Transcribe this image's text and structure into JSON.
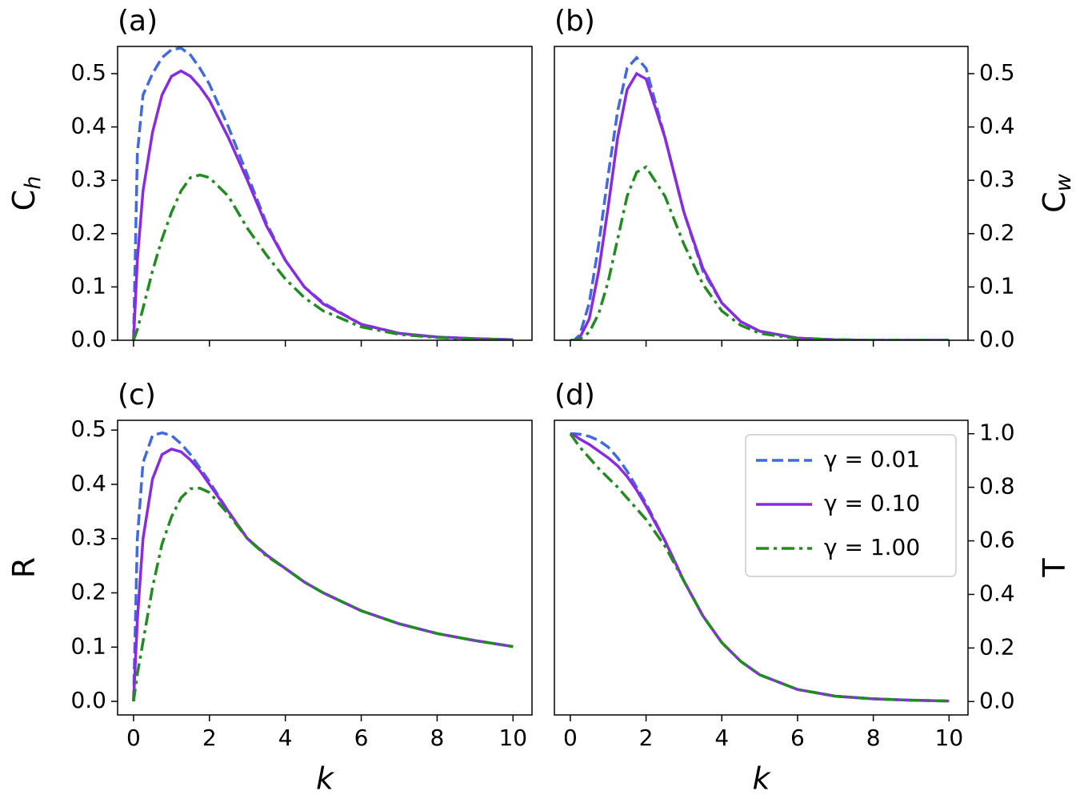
{
  "chart_data": [
    {
      "type": "line",
      "title": "(a)",
      "ylabel": {
        "base": "C",
        "sub": "h"
      },
      "yaxis_side": "left",
      "show_xticklabels": false,
      "x": [
        0,
        0.1,
        0.25,
        0.5,
        0.75,
        1,
        1.25,
        1.5,
        1.75,
        2,
        2.5,
        3,
        3.5,
        4,
        4.5,
        5,
        6,
        7,
        8,
        9,
        10
      ],
      "xlim": [
        -0.42,
        10.5
      ],
      "xticks": [
        0,
        2,
        4,
        6,
        8,
        10
      ],
      "ylim": [
        0,
        0.551
      ],
      "yticks": [
        {
          "value": 0,
          "label": "0.0"
        },
        0.1,
        0.2,
        0.3,
        0.4,
        0.5
      ],
      "series": [
        {
          "name": "γ = 0.01",
          "color": "#4169e1",
          "linestyle": "dashed",
          "values": [
            0,
            0.35,
            0.46,
            0.5,
            0.53,
            0.545,
            0.548,
            0.535,
            0.51,
            0.48,
            0.4,
            0.31,
            0.22,
            0.15,
            0.1,
            0.07,
            0.03,
            0.013,
            0.006,
            0.003,
            0.001
          ]
        },
        {
          "name": "γ = 0.10",
          "color": "#8a2be2",
          "linestyle": "solid",
          "values": [
            0,
            0.15,
            0.28,
            0.39,
            0.46,
            0.495,
            0.505,
            0.495,
            0.475,
            0.45,
            0.38,
            0.3,
            0.215,
            0.15,
            0.1,
            0.068,
            0.03,
            0.013,
            0.006,
            0.003,
            0.001
          ]
        },
        {
          "name": "γ = 1.00",
          "color": "#228b22",
          "linestyle": "dashdot",
          "values": [
            0,
            0.02,
            0.06,
            0.13,
            0.19,
            0.24,
            0.28,
            0.305,
            0.31,
            0.305,
            0.27,
            0.21,
            0.16,
            0.115,
            0.08,
            0.055,
            0.025,
            0.011,
            0.005,
            0.002,
            0.001
          ]
        }
      ]
    },
    {
      "type": "line",
      "title": "(b)",
      "ylabel": {
        "base": "C",
        "sub": "w"
      },
      "yaxis_side": "right",
      "show_xticklabels": false,
      "x": [
        0,
        0.1,
        0.25,
        0.5,
        0.75,
        1,
        1.25,
        1.5,
        1.75,
        2,
        2.5,
        3,
        3.5,
        4,
        4.5,
        5,
        6,
        7,
        8,
        9,
        10
      ],
      "xlim": [
        -0.42,
        10.5
      ],
      "xticks": [
        0,
        2,
        4,
        6,
        8,
        10
      ],
      "ylim": [
        0,
        0.551
      ],
      "yticks": [
        {
          "value": 0,
          "label": "0.0"
        },
        0.1,
        0.2,
        0.3,
        0.4,
        0.5
      ],
      "series": [
        {
          "name": "γ = 0.01",
          "color": "#4169e1",
          "linestyle": "dashed",
          "values": [
            0,
            0,
            0.01,
            0.07,
            0.18,
            0.31,
            0.43,
            0.51,
            0.53,
            0.51,
            0.38,
            0.24,
            0.13,
            0.07,
            0.035,
            0.017,
            0.004,
            0.001,
            0,
            0,
            0
          ]
        },
        {
          "name": "γ = 0.10",
          "color": "#8a2be2",
          "linestyle": "solid",
          "values": [
            0,
            0,
            0.005,
            0.04,
            0.13,
            0.25,
            0.38,
            0.47,
            0.5,
            0.49,
            0.38,
            0.24,
            0.135,
            0.07,
            0.035,
            0.017,
            0.004,
            0.001,
            0,
            0,
            0
          ]
        },
        {
          "name": "γ = 1.00",
          "color": "#228b22",
          "linestyle": "dashdot",
          "values": [
            0,
            0,
            0.002,
            0.015,
            0.05,
            0.11,
            0.19,
            0.27,
            0.315,
            0.325,
            0.27,
            0.18,
            0.105,
            0.055,
            0.028,
            0.013,
            0.003,
            0.001,
            0,
            0,
            0
          ]
        }
      ]
    },
    {
      "type": "line",
      "title": "(c)",
      "ylabel": {
        "base": "R"
      },
      "xlabel": "k",
      "yaxis_side": "left",
      "show_xticklabels": true,
      "x": [
        0,
        0.1,
        0.25,
        0.5,
        0.75,
        1,
        1.25,
        1.5,
        1.75,
        2,
        2.5,
        3,
        3.5,
        4,
        4.5,
        5,
        6,
        7,
        8,
        9,
        10
      ],
      "xlim": [
        -0.42,
        10.5
      ],
      "xticks": [
        0,
        2,
        4,
        6,
        8,
        10
      ],
      "ylim": [
        -0.025,
        0.518
      ],
      "yticks": [
        {
          "value": 0,
          "label": "0.0"
        },
        0.1,
        0.2,
        0.3,
        0.4,
        0.5
      ],
      "series": [
        {
          "name": "γ = 0.01",
          "color": "#4169e1",
          "linestyle": "dashed",
          "values": [
            0,
            0.3,
            0.44,
            0.49,
            0.495,
            0.49,
            0.475,
            0.455,
            0.43,
            0.405,
            0.35,
            0.3,
            0.27,
            0.245,
            0.22,
            0.2,
            0.167,
            0.143,
            0.125,
            0.112,
            0.101
          ]
        },
        {
          "name": "γ = 0.10",
          "color": "#8a2be2",
          "linestyle": "solid",
          "values": [
            0,
            0.15,
            0.3,
            0.41,
            0.455,
            0.465,
            0.46,
            0.445,
            0.425,
            0.4,
            0.35,
            0.3,
            0.27,
            0.245,
            0.22,
            0.2,
            0.167,
            0.143,
            0.125,
            0.112,
            0.101
          ]
        },
        {
          "name": "γ = 1.00",
          "color": "#228b22",
          "linestyle": "dashdot",
          "values": [
            0,
            0.05,
            0.11,
            0.21,
            0.29,
            0.34,
            0.375,
            0.392,
            0.393,
            0.385,
            0.345,
            0.3,
            0.268,
            0.245,
            0.22,
            0.2,
            0.167,
            0.143,
            0.125,
            0.112,
            0.101
          ]
        }
      ]
    },
    {
      "type": "line",
      "title": "(d)",
      "ylabel": {
        "base": "T"
      },
      "xlabel": "k",
      "yaxis_side": "right",
      "show_xticklabels": true,
      "legend": "upper right",
      "x": [
        0,
        0.1,
        0.25,
        0.5,
        0.75,
        1,
        1.25,
        1.5,
        1.75,
        2,
        2.5,
        3,
        3.5,
        4,
        4.5,
        5,
        6,
        7,
        8,
        9,
        10
      ],
      "xlim": [
        -0.42,
        10.5
      ],
      "xticks": [
        0,
        2,
        4,
        6,
        8,
        10
      ],
      "ylim": [
        -0.05,
        1.05
      ],
      "yticks": [
        {
          "value": 0,
          "label": "0.0"
        },
        0.2,
        0.4,
        0.6,
        0.8,
        {
          "value": 1,
          "label": "1.0"
        }
      ],
      "series": [
        {
          "name": "γ = 0.01",
          "color": "#4169e1",
          "linestyle": "dashed",
          "values": [
            1,
            1,
            0.998,
            0.99,
            0.975,
            0.95,
            0.91,
            0.86,
            0.8,
            0.74,
            0.6,
            0.45,
            0.32,
            0.22,
            0.15,
            0.1,
            0.045,
            0.02,
            0.01,
            0.005,
            0.002
          ]
        },
        {
          "name": "γ = 0.10",
          "color": "#8a2be2",
          "linestyle": "solid",
          "values": [
            1,
            0.995,
            0.98,
            0.96,
            0.935,
            0.91,
            0.88,
            0.84,
            0.79,
            0.73,
            0.6,
            0.45,
            0.32,
            0.22,
            0.15,
            0.1,
            0.045,
            0.02,
            0.01,
            0.005,
            0.002
          ]
        },
        {
          "name": "γ = 1.00",
          "color": "#228b22",
          "linestyle": "dashdot",
          "values": [
            1,
            0.98,
            0.95,
            0.91,
            0.87,
            0.835,
            0.8,
            0.76,
            0.72,
            0.68,
            0.58,
            0.45,
            0.32,
            0.22,
            0.15,
            0.1,
            0.045,
            0.02,
            0.01,
            0.005,
            0.002
          ]
        }
      ]
    }
  ]
}
